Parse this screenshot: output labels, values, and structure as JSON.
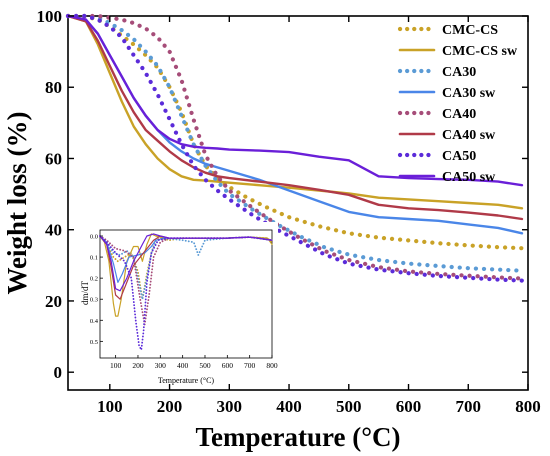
{
  "chart_data": [
    {
      "type": "line",
      "title": "",
      "xlabel": "Temperature (°C)",
      "ylabel": "Weight loss (%)",
      "xlim": [
        30,
        800
      ],
      "ylim": [
        -5,
        100
      ],
      "x_ticks": [
        100,
        200,
        300,
        400,
        500,
        600,
        700,
        800
      ],
      "y_ticks": [
        0,
        20,
        40,
        60,
        80,
        100
      ],
      "grid": false,
      "legend_position": "top-right",
      "series": [
        {
          "name": "CMC-CS",
          "style": "dotted",
          "color": "#C9A227",
          "x": [
            30,
            60,
            80,
            100,
            120,
            140,
            160,
            180,
            200,
            220,
            240,
            260,
            280,
            300,
            330,
            360,
            400,
            450,
            500,
            550,
            600,
            650,
            700,
            750,
            790
          ],
          "y": [
            100,
            99.8,
            99,
            97,
            94.5,
            92,
            89,
            85.5,
            80,
            73,
            64,
            58,
            54.5,
            52,
            49,
            46.5,
            43.5,
            41,
            39,
            37.8,
            37,
            36.2,
            35.6,
            35.1,
            34.8
          ]
        },
        {
          "name": "CMC-CS sw",
          "style": "solid",
          "color": "#C9A227",
          "x": [
            30,
            60,
            80,
            100,
            120,
            140,
            160,
            180,
            200,
            220,
            240,
            260,
            300,
            350,
            400,
            450,
            500,
            550,
            600,
            650,
            700,
            750,
            790
          ],
          "y": [
            100,
            98.5,
            92,
            84,
            76,
            69,
            64,
            60,
            57,
            55,
            54,
            53.8,
            53.2,
            52.5,
            51.8,
            51,
            50.2,
            49,
            48.5,
            48,
            47.5,
            47,
            46
          ]
        },
        {
          "name": "CA30",
          "style": "dotted",
          "color": "#5B9BD5",
          "x": [
            30,
            60,
            80,
            100,
            120,
            140,
            160,
            180,
            200,
            220,
            240,
            260,
            280,
            300,
            340,
            380,
            420,
            460,
            500,
            550,
            600,
            650,
            700,
            750,
            790
          ],
          "y": [
            100,
            100,
            99.5,
            98,
            96,
            93.5,
            90,
            86,
            80,
            72,
            64,
            58,
            53.5,
            50,
            45.5,
            41.5,
            38,
            35,
            33,
            31.5,
            30.5,
            29.8,
            29.2,
            28.8,
            28.5
          ]
        },
        {
          "name": "CA30 sw",
          "style": "solid",
          "color": "#4A86E8",
          "x": [
            30,
            60,
            80,
            100,
            120,
            140,
            160,
            180,
            200,
            220,
            240,
            260,
            280,
            300,
            350,
            400,
            450,
            500,
            550,
            600,
            650,
            700,
            750,
            790
          ],
          "y": [
            100,
            99,
            95,
            89,
            83,
            77,
            72,
            68,
            64.5,
            62,
            60,
            58.5,
            57.5,
            56.5,
            54,
            51,
            48,
            45,
            43.5,
            43,
            42.5,
            41.5,
            40.5,
            39
          ]
        },
        {
          "name": "CA40",
          "style": "dotted",
          "color": "#A64D79",
          "x": [
            30,
            60,
            80,
            100,
            120,
            140,
            160,
            180,
            200,
            220,
            240,
            260,
            280,
            300,
            340,
            380,
            420,
            460,
            500,
            550,
            600,
            650,
            700,
            750,
            790
          ],
          "y": [
            100,
            100,
            100,
            99.5,
            99,
            98,
            96.5,
            94,
            90,
            82,
            71,
            61,
            55,
            51,
            46,
            41.5,
            37.5,
            34,
            31.5,
            29.5,
            28.3,
            27.6,
            27.1,
            26.6,
            26.3
          ]
        },
        {
          "name": "CA40 sw",
          "style": "solid",
          "color": "#B03A48",
          "x": [
            30,
            60,
            80,
            100,
            120,
            140,
            160,
            180,
            200,
            220,
            240,
            260,
            280,
            300,
            350,
            400,
            450,
            500,
            550,
            600,
            650,
            700,
            750,
            790
          ],
          "y": [
            100,
            98.5,
            93,
            86,
            79,
            73,
            68,
            65,
            62,
            59.5,
            57.5,
            56,
            55,
            54.5,
            53.5,
            52.5,
            51.2,
            49.8,
            47,
            46,
            45.5,
            44.8,
            44,
            43
          ]
        },
        {
          "name": "CA50",
          "style": "dotted",
          "color": "#5B2BD9",
          "x": [
            30,
            60,
            80,
            100,
            120,
            140,
            160,
            180,
            200,
            220,
            240,
            260,
            280,
            300,
            340,
            380,
            420,
            460,
            500,
            550,
            600,
            650,
            700,
            750,
            790
          ],
          "y": [
            100,
            100,
            99,
            97,
            94,
            89,
            84,
            78,
            71,
            64,
            58,
            54,
            51,
            48.5,
            44,
            40,
            36.5,
            33,
            30.5,
            28.8,
            27.8,
            27,
            26.5,
            26,
            25.7
          ]
        },
        {
          "name": "CA50  sw",
          "style": "solid",
          "color": "#6A1FD8",
          "x": [
            30,
            60,
            80,
            100,
            120,
            140,
            160,
            180,
            200,
            220,
            240,
            260,
            280,
            300,
            350,
            400,
            450,
            500,
            550,
            600,
            650,
            700,
            750,
            790
          ],
          "y": [
            100,
            99,
            95,
            89,
            83,
            77,
            72,
            68,
            65.5,
            64,
            63.3,
            63,
            62.8,
            62.5,
            62.2,
            61.8,
            60.5,
            59.5,
            55,
            54.5,
            54.2,
            54,
            53.5,
            52.5
          ]
        }
      ]
    },
    {
      "type": "line",
      "title": "",
      "xlabel": "Temperature (°C)",
      "ylabel": "dm/dT",
      "xlim": [
        30,
        800
      ],
      "ylim": [
        0,
        0.56
      ],
      "y_inverted": true,
      "x_ticks": [
        100,
        200,
        300,
        400,
        500,
        600,
        700,
        800
      ],
      "y_ticks": [
        0.0,
        0.1,
        0.2,
        0.3,
        0.4,
        0.5
      ],
      "series": [
        {
          "name": "CMC-CS",
          "style": "dotted",
          "color": "#C9A227",
          "x": [
            30,
            60,
            90,
            110,
            140,
            170,
            200,
            220,
            240,
            260,
            280,
            300,
            340,
            400,
            500,
            600,
            700,
            780,
            800
          ],
          "y": [
            0.0,
            0.04,
            0.1,
            0.12,
            0.1,
            0.08,
            0.17,
            0.3,
            0.18,
            0.08,
            0.02,
            0.01,
            0.02,
            0.01,
            0.01,
            0.01,
            0.005,
            0.01,
            0.03
          ]
        },
        {
          "name": "CMC-CS sw",
          "style": "solid",
          "color": "#C9A227",
          "x": [
            30,
            50,
            70,
            90,
            100,
            110,
            125,
            150,
            180,
            200,
            220,
            240,
            260,
            280,
            320,
            400,
            500,
            600,
            700,
            780,
            800
          ],
          "y": [
            0.0,
            0.03,
            0.12,
            0.32,
            0.38,
            0.38,
            0.3,
            0.12,
            0.05,
            0.05,
            0.12,
            0.04,
            -0.01,
            0.0,
            0.01,
            0.01,
            0.01,
            0.01,
            0.005,
            0.01,
            0.04
          ]
        },
        {
          "name": "CA30",
          "style": "dotted",
          "color": "#5B9BD5",
          "x": [
            30,
            60,
            90,
            120,
            150,
            180,
            200,
            220,
            240,
            260,
            280,
            320,
            400,
            450,
            470,
            500,
            600,
            700,
            800
          ],
          "y": [
            0.0,
            0.03,
            0.08,
            0.09,
            0.07,
            0.1,
            0.2,
            0.3,
            0.2,
            0.08,
            0.02,
            0.01,
            0.02,
            0.03,
            0.09,
            0.02,
            0.01,
            0.005,
            0.02
          ]
        },
        {
          "name": "CA30 sw",
          "style": "solid",
          "color": "#4A86E8",
          "x": [
            30,
            60,
            90,
            110,
            130,
            160,
            200,
            230,
            260,
            280,
            320,
            400,
            500,
            600,
            700,
            800
          ],
          "y": [
            0.0,
            0.03,
            0.13,
            0.22,
            0.18,
            0.1,
            0.09,
            0.08,
            0.05,
            0.02,
            0.01,
            0.01,
            0.01,
            0.01,
            0.005,
            0.02
          ]
        },
        {
          "name": "CA40",
          "style": "dotted",
          "color": "#A64D79",
          "x": [
            30,
            60,
            100,
            140,
            180,
            210,
            230,
            250,
            270,
            300,
            340,
            400,
            500,
            600,
            700,
            800
          ],
          "y": [
            0.0,
            0.02,
            0.06,
            0.07,
            0.1,
            0.3,
            0.42,
            0.28,
            0.1,
            0.03,
            0.01,
            0.01,
            0.01,
            0.01,
            0.005,
            0.02
          ]
        },
        {
          "name": "CA40 sw",
          "style": "solid",
          "color": "#B03A48",
          "x": [
            30,
            60,
            80,
            100,
            120,
            150,
            180,
            210,
            240,
            270,
            300,
            340,
            400,
            500,
            600,
            700,
            800
          ],
          "y": [
            0.0,
            0.04,
            0.15,
            0.28,
            0.3,
            0.22,
            0.14,
            0.1,
            0.06,
            0.02,
            0.0,
            0.01,
            0.01,
            0.01,
            0.01,
            0.005,
            0.02
          ]
        },
        {
          "name": "CA50",
          "style": "dotted",
          "color": "#5B2BD9",
          "x": [
            30,
            60,
            100,
            140,
            170,
            190,
            205,
            215,
            225,
            240,
            260,
            290,
            340,
            400,
            500,
            600,
            700,
            800
          ],
          "y": [
            0.0,
            0.03,
            0.08,
            0.12,
            0.2,
            0.4,
            0.52,
            0.54,
            0.45,
            0.22,
            0.08,
            0.02,
            0.01,
            0.01,
            0.01,
            0.01,
            0.005,
            0.02
          ]
        },
        {
          "name": "CA50  sw",
          "style": "solid",
          "color": "#6A1FD8",
          "x": [
            30,
            60,
            80,
            100,
            120,
            150,
            180,
            200,
            220,
            240,
            270,
            300,
            340,
            400,
            500,
            600,
            700,
            800
          ],
          "y": [
            0.0,
            0.04,
            0.12,
            0.25,
            0.26,
            0.2,
            0.12,
            0.08,
            0.04,
            0.0,
            -0.01,
            0.0,
            0.01,
            0.01,
            0.01,
            0.01,
            0.005,
            0.02
          ]
        }
      ]
    }
  ]
}
